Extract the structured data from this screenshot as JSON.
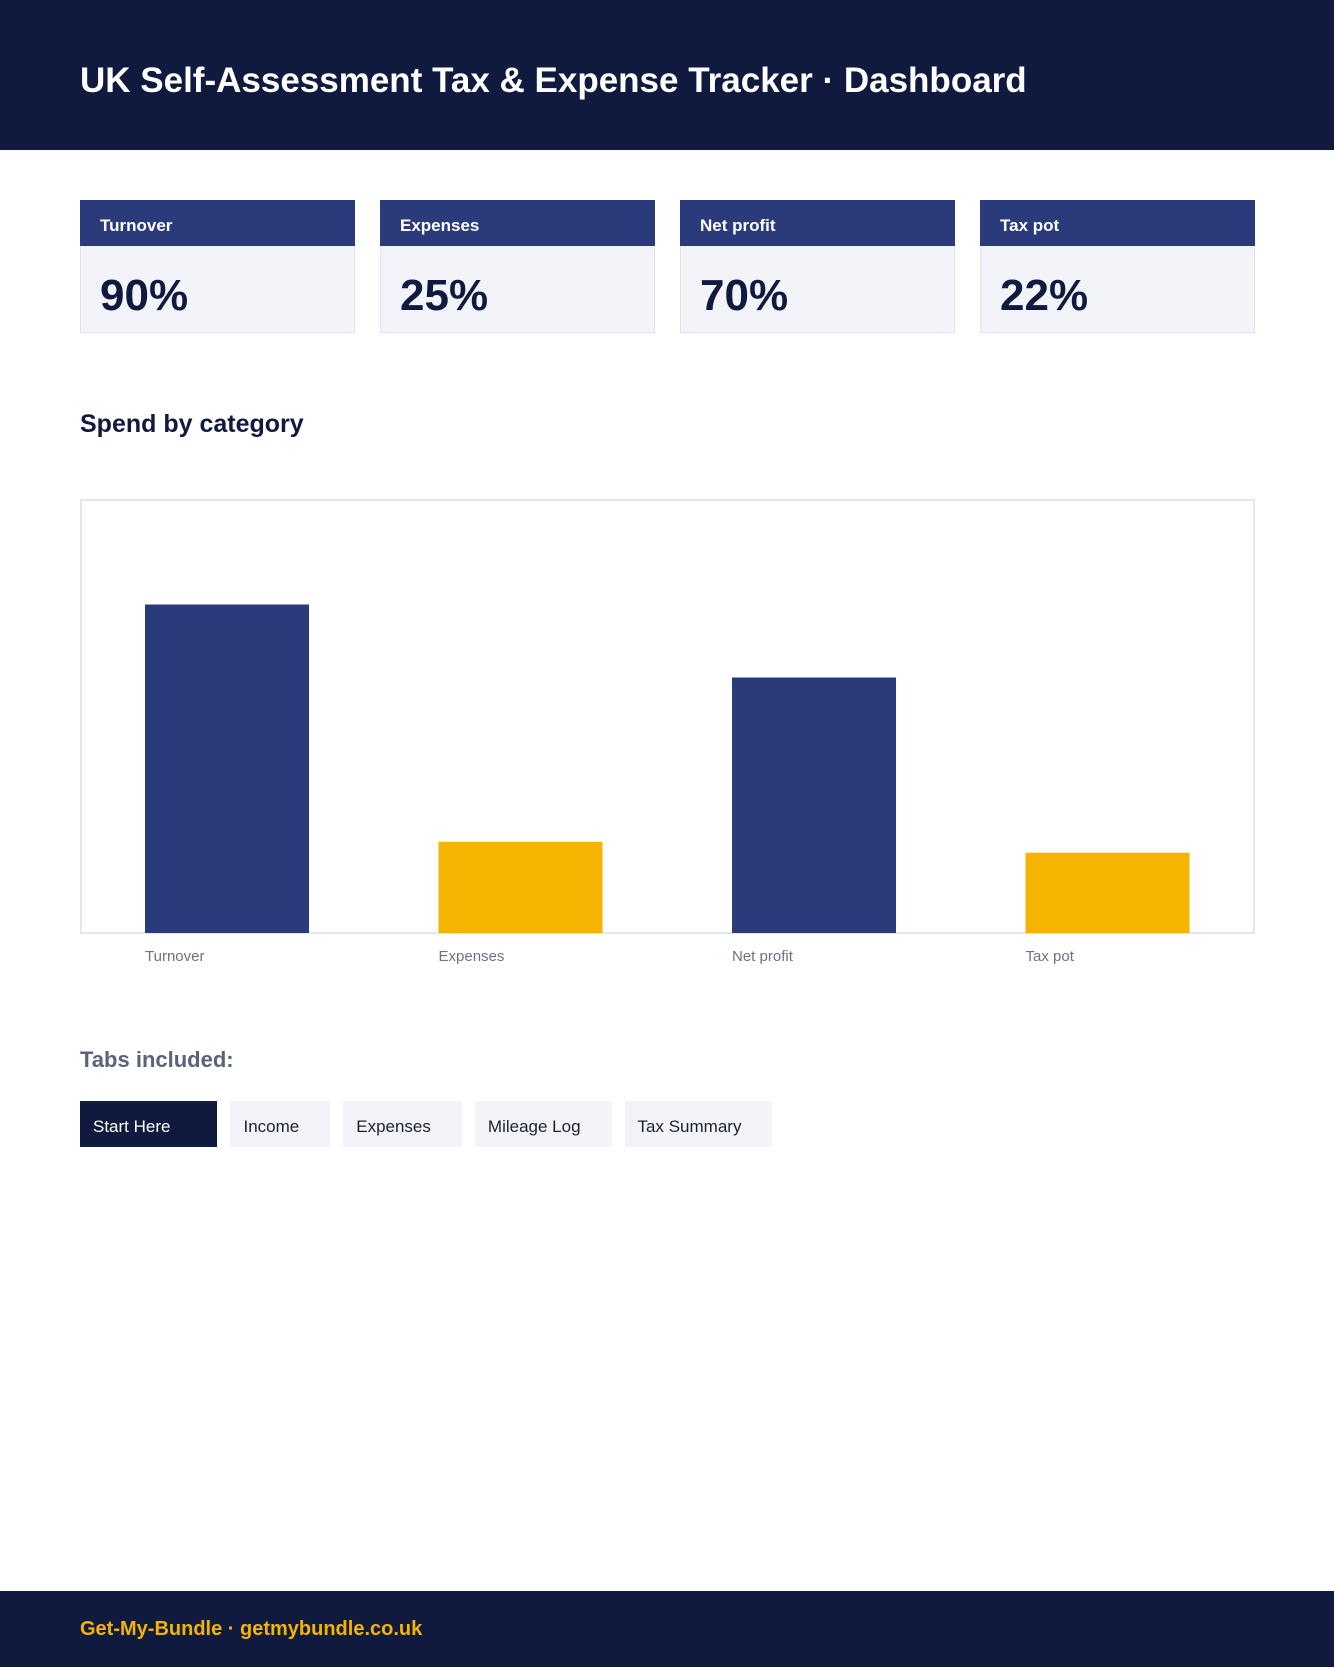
{
  "header": {
    "title": "UK Self-Assessment Tax & Expense Tracker · Dashboard"
  },
  "kpis": [
    {
      "label": "Turnover",
      "value": "90%"
    },
    {
      "label": "Expenses",
      "value": "25%"
    },
    {
      "label": "Net profit",
      "value": "70%"
    },
    {
      "label": "Tax pot",
      "value": "22%"
    }
  ],
  "section": {
    "title": "Spend by category"
  },
  "chart_data": {
    "type": "bar",
    "title": "",
    "xlabel": "",
    "ylabel": "",
    "categories": [
      "Turnover",
      "Expenses",
      "Net profit",
      "Tax pot"
    ],
    "values": [
      90,
      25,
      70,
      22
    ],
    "ylim": [
      0,
      100
    ],
    "grid": false,
    "bar_colors": [
      "#2b3a7a",
      "#f5b400",
      "#2b3a7a",
      "#f5b400"
    ]
  },
  "tabs": {
    "title": "Tabs included:",
    "items": [
      {
        "label": "Start Here",
        "active": true
      },
      {
        "label": "Income",
        "active": false
      },
      {
        "label": "Expenses",
        "active": false
      },
      {
        "label": "Mileage Log",
        "active": false
      },
      {
        "label": "Tax Summary",
        "active": false
      }
    ]
  },
  "footer": {
    "text": "Get-My-Bundle · getmybundle.co.uk"
  },
  "colors": {
    "navy": "#0f1a3e",
    "accent_blue": "#2b3a7a",
    "accent_gold": "#f5b400",
    "card_bg": "#f3f4f9"
  }
}
